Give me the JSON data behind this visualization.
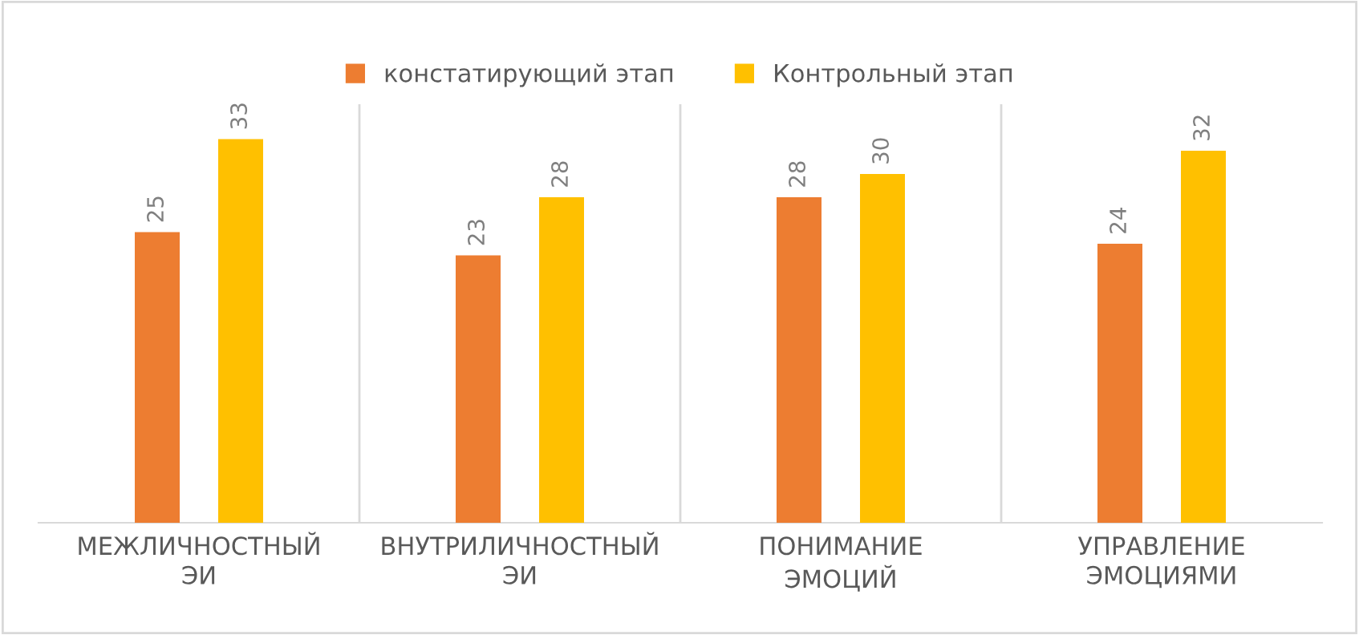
{
  "chart_data": {
    "type": "bar",
    "categories": [
      "МЕЖЛИЧНОСТНЫЙ ЭИ",
      "ВНУТРИЛИЧНОСТНЫЙ ЭИ",
      "ПОНИМАНИЕ ЭМОЦИЙ",
      "УПРАВЛЕНИЕ ЭМОЦИЯМИ"
    ],
    "series": [
      {
        "name": "констатирующий этап",
        "color": "#ed7d31",
        "values": [
          25,
          23,
          28,
          24
        ]
      },
      {
        "name": "Контрольный этап",
        "color": "#ffc000",
        "values": [
          33,
          28,
          30,
          32
        ]
      }
    ],
    "ylim": [
      0,
      36
    ],
    "data_labels": true,
    "grid": "x",
    "legend": "top"
  }
}
